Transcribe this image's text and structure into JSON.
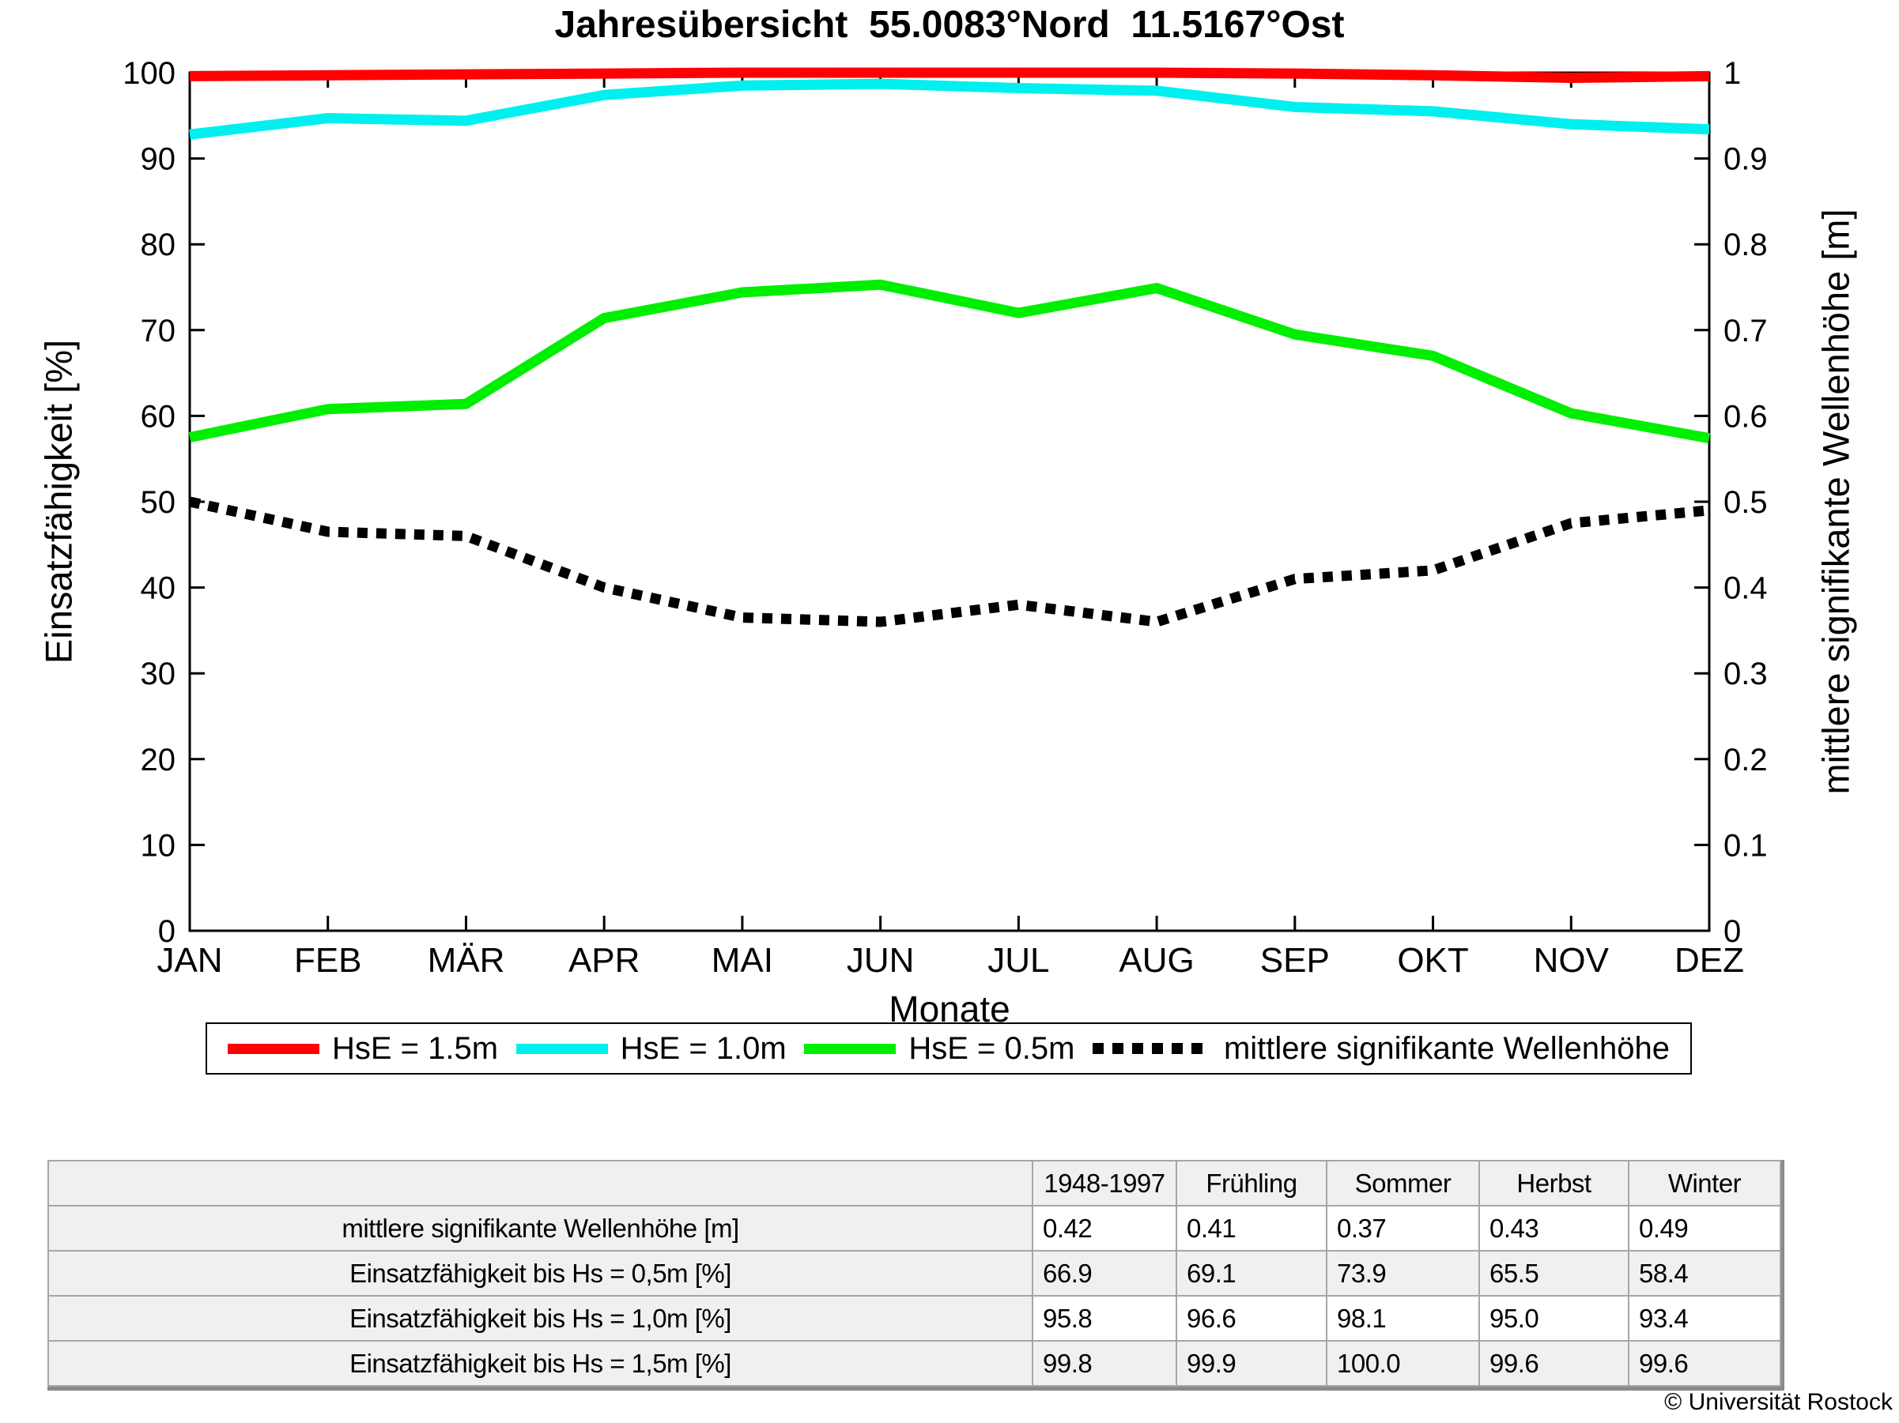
{
  "title": "Jahresübersicht  55.0083°Nord  11.5167°Ost",
  "copyright": "© Universität Rostock",
  "chart_data": {
    "type": "line",
    "categories": [
      "JAN",
      "FEB",
      "MÄR",
      "APR",
      "MAI",
      "JUN",
      "JUL",
      "AUG",
      "SEP",
      "OKT",
      "NOV",
      "DEZ"
    ],
    "x_label": "Monate",
    "y_left": {
      "label": "Einsatzfähigkeit [%]",
      "min": 0,
      "max": 100,
      "step": 10
    },
    "y_right": {
      "label": "mittlere signifikante Wellenhöhe [m]",
      "min": 0,
      "max": 1,
      "step": 0.1
    },
    "grid": false,
    "legend_position": "bottom",
    "series": [
      {
        "name": "HsE = 1.5m",
        "color": "#ff0000",
        "style": "solid",
        "axis": "left",
        "values": [
          99.6,
          99.7,
          99.8,
          99.9,
          100,
          100,
          100,
          100,
          99.9,
          99.7,
          99.4,
          99.6
        ]
      },
      {
        "name": "HsE = 1.0m",
        "color": "#00efef",
        "style": "solid",
        "axis": "left",
        "values": [
          92.8,
          94.7,
          94.4,
          97.4,
          98.5,
          98.7,
          98.2,
          97.9,
          96.0,
          95.5,
          94.0,
          93.4
        ]
      },
      {
        "name": "HsE = 0.5m",
        "color": "#00ef00",
        "style": "solid",
        "axis": "left",
        "values": [
          57.5,
          60.8,
          61.4,
          71.4,
          74.4,
          75.3,
          72.0,
          74.9,
          69.5,
          67.0,
          60.3,
          57.4
        ]
      },
      {
        "name": "mittlere signifikante Wellenhöhe",
        "color": "#000000",
        "style": "dotted",
        "axis": "right",
        "values": [
          0.5,
          0.465,
          0.46,
          0.4,
          0.365,
          0.36,
          0.38,
          0.36,
          0.41,
          0.42,
          0.475,
          0.49
        ]
      }
    ]
  },
  "table": {
    "col_headers": [
      "",
      "1948-1997",
      "Frühling",
      "Sommer",
      "Herbst",
      "Winter"
    ],
    "rows": [
      {
        "label": "mittlere signifikante Wellenhöhe [m]",
        "values": [
          "0.42",
          "0.41",
          "0.37",
          "0.43",
          "0.49"
        ]
      },
      {
        "label": "Einsatzfähigkeit bis Hs = 0,5m [%]",
        "values": [
          "66.9",
          "69.1",
          "73.9",
          "65.5",
          "58.4"
        ]
      },
      {
        "label": "Einsatzfähigkeit bis Hs = 1,0m [%]",
        "values": [
          "95.8",
          "96.6",
          "98.1",
          "95.0",
          "93.4"
        ]
      },
      {
        "label": "Einsatzfähigkeit bis Hs = 1,5m [%]",
        "values": [
          "99.8",
          "99.9",
          "100.0",
          "99.6",
          "99.6"
        ]
      }
    ]
  },
  "colors": {
    "red": "#ff0000",
    "cyan": "#00efef",
    "green": "#00ef00",
    "black": "#000000"
  }
}
